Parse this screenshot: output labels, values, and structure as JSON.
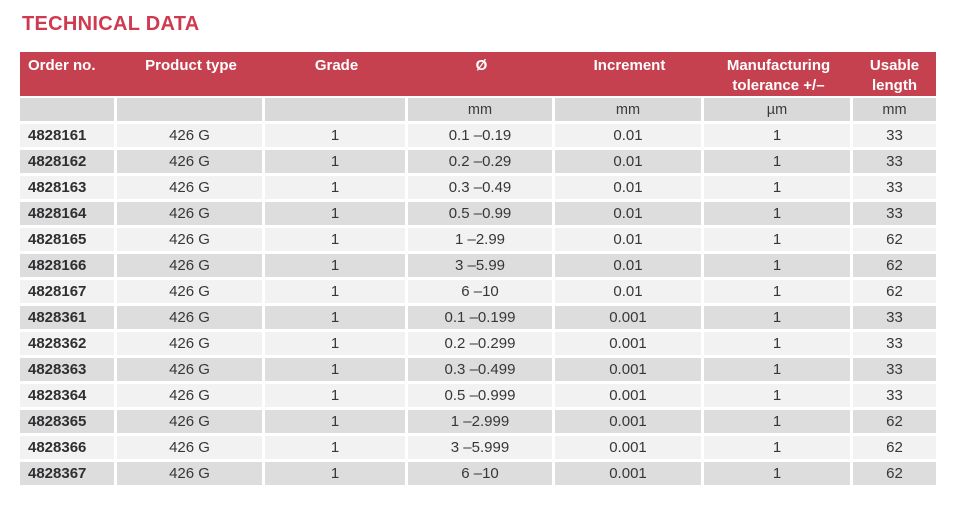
{
  "page": {
    "title": "TECHNICAL DATA"
  },
  "colors": {
    "title_red": "#D03A50",
    "header_red": "#C5414F",
    "header_text": "#FFFFFF",
    "units_bg": "#D9D9DA",
    "row_light": "#F2F2F3",
    "row_dark": "#DDDDDE",
    "text_dark": "#37373A"
  },
  "table": {
    "column_keys": [
      "order-no",
      "product-type",
      "grade",
      "diameter",
      "increment",
      "manufacturing-tolerance",
      "usable-length"
    ],
    "columns": [
      {
        "label": "Order no.",
        "unit": ""
      },
      {
        "label": "Product type",
        "unit": ""
      },
      {
        "label": "Grade",
        "unit": ""
      },
      {
        "label": "Ø",
        "unit": "mm"
      },
      {
        "label": "Increment",
        "unit": "mm"
      },
      {
        "label": "Manufacturing tolerance +/–",
        "unit": "µm"
      },
      {
        "label": "Usable length",
        "unit": "mm"
      }
    ],
    "rows": [
      [
        "4828161",
        "426 G",
        "1",
        "0.1 –0.19",
        "0.01",
        "1",
        "33"
      ],
      [
        "4828162",
        "426 G",
        "1",
        "0.2 –0.29",
        "0.01",
        "1",
        "33"
      ],
      [
        "4828163",
        "426 G",
        "1",
        "0.3 –0.49",
        "0.01",
        "1",
        "33"
      ],
      [
        "4828164",
        "426 G",
        "1",
        "0.5 –0.99",
        "0.01",
        "1",
        "33"
      ],
      [
        "4828165",
        "426 G",
        "1",
        "1 –2.99",
        "0.01",
        "1",
        "62"
      ],
      [
        "4828166",
        "426 G",
        "1",
        "3 –5.99",
        "0.01",
        "1",
        "62"
      ],
      [
        "4828167",
        "426 G",
        "1",
        "6 –10",
        "0.01",
        "1",
        "62"
      ],
      [
        "4828361",
        "426 G",
        "1",
        "0.1 –0.199",
        "0.001",
        "1",
        "33"
      ],
      [
        "4828362",
        "426 G",
        "1",
        "0.2 –0.299",
        "0.001",
        "1",
        "33"
      ],
      [
        "4828363",
        "426 G",
        "1",
        "0.3 –0.499",
        "0.001",
        "1",
        "33"
      ],
      [
        "4828364",
        "426 G",
        "1",
        "0.5 –0.999",
        "0.001",
        "1",
        "33"
      ],
      [
        "4828365",
        "426 G",
        "1",
        "1 –2.999",
        "0.001",
        "1",
        "62"
      ],
      [
        "4828366",
        "426 G",
        "1",
        "3 –5.999",
        "0.001",
        "1",
        "62"
      ],
      [
        "4828367",
        "426 G",
        "1",
        "6 –10",
        "0.001",
        "1",
        "62"
      ]
    ]
  }
}
